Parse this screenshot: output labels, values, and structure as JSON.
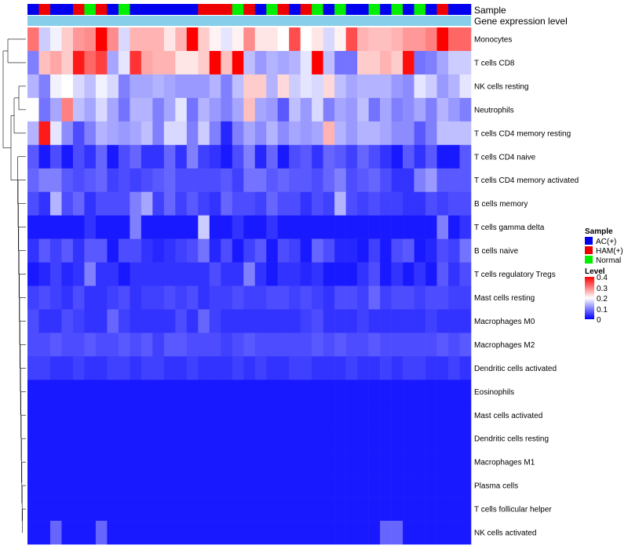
{
  "chart_data": {
    "type": "heatmap",
    "title": "",
    "annotation_labels": {
      "sample": "Sample",
      "gene": "Gene expression level"
    },
    "sample_groups": [
      "AC(+)",
      "HAM(+)",
      "Normal"
    ],
    "sample_group_colors": {
      "AC(+)": "#0000ee",
      "HAM(+)": "#ee0000",
      "Normal": "#00ee00"
    },
    "gene_bar_color": "#87ceeb",
    "columns": [
      "A",
      "H",
      "A",
      "A",
      "H",
      "N",
      "H",
      "A",
      "N",
      "A",
      "A",
      "A",
      "A",
      "A",
      "A",
      "H",
      "H",
      "H",
      "N",
      "H",
      "A",
      "N",
      "H",
      "A",
      "H",
      "N",
      "A",
      "N",
      "A",
      "A",
      "N",
      "A",
      "N",
      "A",
      "N",
      "A",
      "H",
      "A",
      "A"
    ],
    "rows": [
      "Monocytes",
      "T cells CD8",
      "NK cells resting",
      "Neutrophils",
      "T cells CD4 memory resting",
      "T cells CD4 naive",
      "T cells CD4 memory activated",
      "B cells memory",
      "T cells gamma delta",
      "B cells naive",
      "T cells regulatory  Tregs",
      "Mast cells resting",
      "Macrophages M0",
      "Macrophages M2",
      "Dendritic cells activated",
      "Eosinophils",
      "Mast cells activated",
      "Dendritic cells resting",
      "Macrophages M1",
      "Plasma cells",
      "T cells follicular helper",
      "NK cells activated"
    ],
    "values": [
      [
        0.31,
        0.16,
        0.19,
        0.24,
        0.28,
        0.29,
        0.4,
        0.29,
        0.17,
        0.26,
        0.26,
        0.26,
        0.22,
        0.26,
        0.4,
        0.24,
        0.21,
        0.18,
        0.21,
        0.29,
        0.22,
        0.22,
        0.2,
        0.34,
        0.2,
        0.22,
        0.17,
        0.21,
        0.34,
        0.26,
        0.25,
        0.25,
        0.26,
        0.28,
        0.28,
        0.3,
        0.4,
        0.32,
        0.32
      ],
      [
        0.1,
        0.25,
        0.27,
        0.24,
        0.38,
        0.32,
        0.35,
        0.13,
        0.18,
        0.36,
        0.27,
        0.26,
        0.26,
        0.22,
        0.22,
        0.24,
        0.4,
        0.25,
        0.4,
        0.15,
        0.12,
        0.14,
        0.13,
        0.14,
        0.18,
        0.41,
        0.15,
        0.09,
        0.09,
        0.24,
        0.24,
        0.26,
        0.24,
        0.39,
        0.09,
        0.1,
        0.13,
        0.16,
        0.16
      ],
      [
        0.14,
        0.1,
        0.19,
        0.2,
        0.17,
        0.15,
        0.19,
        0.17,
        0.1,
        0.13,
        0.13,
        0.14,
        0.13,
        0.12,
        0.12,
        0.12,
        0.14,
        0.1,
        0.15,
        0.24,
        0.24,
        0.14,
        0.23,
        0.16,
        0.18,
        0.17,
        0.23,
        0.15,
        0.13,
        0.14,
        0.14,
        0.14,
        0.12,
        0.11,
        0.18,
        0.16,
        0.12,
        0.14,
        0.18
      ],
      [
        0.2,
        0.09,
        0.13,
        0.3,
        0.15,
        0.13,
        0.17,
        0.13,
        0.09,
        0.14,
        0.14,
        0.1,
        0.13,
        0.18,
        0.09,
        0.14,
        0.12,
        0.1,
        0.13,
        0.25,
        0.13,
        0.12,
        0.07,
        0.15,
        0.12,
        0.17,
        0.1,
        0.13,
        0.12,
        0.15,
        0.09,
        0.13,
        0.1,
        0.11,
        0.13,
        0.1,
        0.14,
        0.12,
        0.1
      ],
      [
        0.14,
        0.38,
        0.18,
        0.11,
        0.06,
        0.1,
        0.14,
        0.13,
        0.12,
        0.13,
        0.15,
        0.1,
        0.17,
        0.17,
        0.1,
        0.16,
        0.1,
        0.03,
        0.1,
        0.13,
        0.11,
        0.14,
        0.11,
        0.13,
        0.12,
        0.13,
        0.26,
        0.14,
        0.12,
        0.14,
        0.14,
        0.13,
        0.11,
        0.11,
        0.07,
        0.1,
        0.15,
        0.15,
        0.15
      ],
      [
        0.07,
        0.02,
        0.06,
        0.02,
        0.06,
        0.04,
        0.08,
        0.02,
        0.06,
        0.08,
        0.04,
        0.04,
        0.08,
        0.04,
        0.1,
        0.05,
        0.04,
        0.02,
        0.06,
        0.1,
        0.03,
        0.08,
        0.02,
        0.06,
        0.07,
        0.04,
        0.08,
        0.07,
        0.05,
        0.08,
        0.06,
        0.04,
        0.02,
        0.07,
        0.04,
        0.07,
        0.02,
        0.02,
        0.07
      ],
      [
        0.08,
        0.1,
        0.1,
        0.07,
        0.06,
        0.07,
        0.08,
        0.05,
        0.06,
        0.05,
        0.06,
        0.07,
        0.08,
        0.06,
        0.06,
        0.06,
        0.06,
        0.07,
        0.05,
        0.09,
        0.09,
        0.07,
        0.08,
        0.07,
        0.07,
        0.06,
        0.08,
        0.1,
        0.06,
        0.07,
        0.08,
        0.06,
        0.04,
        0.04,
        0.1,
        0.12,
        0.07,
        0.07,
        0.07
      ],
      [
        0.06,
        0.04,
        0.14,
        0.06,
        0.08,
        0.04,
        0.06,
        0.06,
        0.06,
        0.1,
        0.13,
        0.05,
        0.08,
        0.05,
        0.07,
        0.05,
        0.04,
        0.08,
        0.06,
        0.06,
        0.05,
        0.08,
        0.06,
        0.06,
        0.04,
        0.06,
        0.05,
        0.14,
        0.06,
        0.05,
        0.06,
        0.05,
        0.05,
        0.04,
        0.04,
        0.06,
        0.05,
        0.06,
        0.06
      ],
      [
        0.02,
        0.02,
        0.02,
        0.02,
        0.02,
        0.04,
        0.02,
        0.02,
        0.02,
        0.1,
        0.02,
        0.02,
        0.02,
        0.02,
        0.02,
        0.16,
        0.02,
        0.02,
        0.04,
        0.02,
        0.02,
        0.04,
        0.02,
        0.02,
        0.02,
        0.02,
        0.02,
        0.02,
        0.02,
        0.02,
        0.02,
        0.02,
        0.02,
        0.02,
        0.02,
        0.02,
        0.1,
        0.02,
        0.04
      ],
      [
        0.04,
        0.07,
        0.05,
        0.07,
        0.04,
        0.07,
        0.07,
        0.02,
        0.06,
        0.06,
        0.04,
        0.03,
        0.04,
        0.05,
        0.06,
        0.09,
        0.03,
        0.06,
        0.02,
        0.05,
        0.07,
        0.02,
        0.06,
        0.05,
        0.02,
        0.08,
        0.06,
        0.03,
        0.03,
        0.02,
        0.05,
        0.02,
        0.06,
        0.07,
        0.02,
        0.03,
        0.06,
        0.05,
        0.09
      ],
      [
        0.02,
        0.03,
        0.05,
        0.03,
        0.04,
        0.1,
        0.04,
        0.04,
        0.02,
        0.04,
        0.04,
        0.04,
        0.04,
        0.04,
        0.04,
        0.04,
        0.06,
        0.04,
        0.04,
        0.1,
        0.04,
        0.02,
        0.04,
        0.04,
        0.03,
        0.04,
        0.02,
        0.02,
        0.02,
        0.04,
        0.06,
        0.02,
        0.04,
        0.02,
        0.04,
        0.02,
        0.07,
        0.04,
        0.06
      ],
      [
        0.05,
        0.06,
        0.05,
        0.04,
        0.06,
        0.04,
        0.04,
        0.05,
        0.06,
        0.04,
        0.05,
        0.05,
        0.06,
        0.05,
        0.06,
        0.04,
        0.05,
        0.05,
        0.06,
        0.05,
        0.05,
        0.06,
        0.06,
        0.05,
        0.06,
        0.05,
        0.04,
        0.06,
        0.06,
        0.05,
        0.08,
        0.05,
        0.06,
        0.06,
        0.05,
        0.06,
        0.06,
        0.05,
        0.05
      ],
      [
        0.06,
        0.04,
        0.04,
        0.06,
        0.05,
        0.04,
        0.04,
        0.08,
        0.05,
        0.04,
        0.04,
        0.04,
        0.04,
        0.06,
        0.04,
        0.08,
        0.05,
        0.04,
        0.04,
        0.04,
        0.04,
        0.04,
        0.04,
        0.04,
        0.05,
        0.06,
        0.04,
        0.04,
        0.04,
        0.05,
        0.04,
        0.04,
        0.04,
        0.04,
        0.04,
        0.05,
        0.04,
        0.04,
        0.04
      ],
      [
        0.06,
        0.06,
        0.07,
        0.06,
        0.06,
        0.07,
        0.06,
        0.06,
        0.07,
        0.06,
        0.07,
        0.05,
        0.07,
        0.07,
        0.06,
        0.06,
        0.06,
        0.05,
        0.06,
        0.07,
        0.06,
        0.06,
        0.06,
        0.06,
        0.06,
        0.07,
        0.06,
        0.07,
        0.06,
        0.06,
        0.07,
        0.06,
        0.06,
        0.06,
        0.06,
        0.06,
        0.07,
        0.06,
        0.07
      ],
      [
        0.05,
        0.05,
        0.04,
        0.04,
        0.05,
        0.04,
        0.04,
        0.05,
        0.05,
        0.04,
        0.05,
        0.05,
        0.04,
        0.04,
        0.05,
        0.04,
        0.04,
        0.04,
        0.05,
        0.04,
        0.05,
        0.04,
        0.04,
        0.05,
        0.05,
        0.04,
        0.04,
        0.04,
        0.05,
        0.04,
        0.04,
        0.05,
        0.04,
        0.05,
        0.05,
        0.04,
        0.04,
        0.05,
        0.04
      ],
      [
        0.02,
        0.02,
        0.02,
        0.02,
        0.02,
        0.02,
        0.02,
        0.02,
        0.02,
        0.02,
        0.02,
        0.02,
        0.02,
        0.02,
        0.02,
        0.02,
        0.02,
        0.02,
        0.02,
        0.02,
        0.02,
        0.02,
        0.02,
        0.02,
        0.02,
        0.02,
        0.02,
        0.02,
        0.02,
        0.02,
        0.02,
        0.02,
        0.02,
        0.02,
        0.02,
        0.02,
        0.02,
        0.02,
        0.02
      ],
      [
        0.02,
        0.02,
        0.02,
        0.02,
        0.02,
        0.02,
        0.02,
        0.02,
        0.02,
        0.02,
        0.02,
        0.02,
        0.02,
        0.02,
        0.02,
        0.02,
        0.02,
        0.02,
        0.02,
        0.02,
        0.02,
        0.02,
        0.02,
        0.02,
        0.02,
        0.02,
        0.02,
        0.02,
        0.02,
        0.02,
        0.02,
        0.02,
        0.02,
        0.02,
        0.02,
        0.02,
        0.02,
        0.02,
        0.02
      ],
      [
        0.02,
        0.02,
        0.02,
        0.02,
        0.02,
        0.02,
        0.02,
        0.02,
        0.02,
        0.02,
        0.02,
        0.02,
        0.02,
        0.02,
        0.02,
        0.02,
        0.02,
        0.02,
        0.02,
        0.02,
        0.02,
        0.02,
        0.02,
        0.02,
        0.02,
        0.02,
        0.02,
        0.02,
        0.02,
        0.02,
        0.02,
        0.02,
        0.02,
        0.02,
        0.02,
        0.02,
        0.02,
        0.02,
        0.02
      ],
      [
        0.02,
        0.02,
        0.02,
        0.02,
        0.02,
        0.02,
        0.02,
        0.02,
        0.02,
        0.02,
        0.02,
        0.02,
        0.02,
        0.02,
        0.02,
        0.02,
        0.02,
        0.02,
        0.02,
        0.02,
        0.02,
        0.02,
        0.02,
        0.02,
        0.02,
        0.02,
        0.02,
        0.02,
        0.02,
        0.02,
        0.02,
        0.02,
        0.02,
        0.02,
        0.02,
        0.02,
        0.02,
        0.02,
        0.02
      ],
      [
        0.02,
        0.02,
        0.02,
        0.02,
        0.02,
        0.02,
        0.02,
        0.02,
        0.02,
        0.02,
        0.02,
        0.02,
        0.02,
        0.02,
        0.02,
        0.02,
        0.02,
        0.02,
        0.02,
        0.02,
        0.02,
        0.02,
        0.02,
        0.02,
        0.02,
        0.02,
        0.02,
        0.02,
        0.02,
        0.02,
        0.02,
        0.02,
        0.02,
        0.02,
        0.02,
        0.02,
        0.02,
        0.02,
        0.02
      ],
      [
        0.02,
        0.02,
        0.02,
        0.02,
        0.02,
        0.02,
        0.02,
        0.02,
        0.02,
        0.02,
        0.02,
        0.02,
        0.02,
        0.02,
        0.02,
        0.02,
        0.02,
        0.02,
        0.02,
        0.02,
        0.02,
        0.02,
        0.02,
        0.02,
        0.02,
        0.02,
        0.02,
        0.02,
        0.02,
        0.02,
        0.02,
        0.02,
        0.02,
        0.02,
        0.02,
        0.02,
        0.02,
        0.02,
        0.02
      ],
      [
        0.02,
        0.02,
        0.08,
        0.02,
        0.02,
        0.02,
        0.08,
        0.02,
        0.02,
        0.02,
        0.02,
        0.02,
        0.02,
        0.02,
        0.02,
        0.02,
        0.02,
        0.02,
        0.02,
        0.02,
        0.02,
        0.02,
        0.02,
        0.02,
        0.02,
        0.02,
        0.02,
        0.02,
        0.02,
        0.02,
        0.02,
        0.08,
        0.08,
        0.02,
        0.02,
        0.02,
        0.02,
        0.02,
        0.02
      ]
    ],
    "color_scale": {
      "min": 0,
      "mid": 0.2,
      "max": 0.4,
      "low": "#0000ff",
      "midColor": "#ffffff",
      "high": "#ff0000"
    },
    "legend": {
      "sample_title": "Sample",
      "sample_entries": [
        "AC(+)",
        "HAM(+)",
        "Normal"
      ],
      "level_title": "Level",
      "level_ticks": [
        "0.4",
        "0.3",
        "0.2",
        "0.1",
        "0"
      ],
      "placement": "right"
    }
  }
}
